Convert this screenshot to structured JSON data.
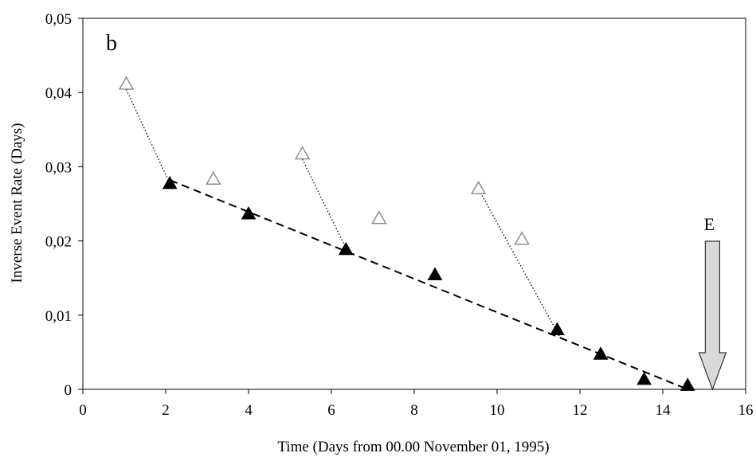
{
  "chart_data": {
    "type": "scatter",
    "panel_label": "b",
    "xlabel": "Time  (Days from 00.00 November 01, 1995)",
    "ylabel": "Inverse Event Rate  (Days)",
    "xlim": [
      0,
      16
    ],
    "ylim": [
      0,
      0.05
    ],
    "x_ticks": [
      0,
      2,
      4,
      6,
      8,
      10,
      12,
      14,
      16
    ],
    "x_tick_labels": [
      "0",
      "2",
      "4",
      "6",
      "8",
      "10",
      "12",
      "14",
      "16"
    ],
    "y_ticks": [
      0,
      0.01,
      0.02,
      0.03,
      0.04,
      0.05
    ],
    "y_tick_labels": [
      "0",
      "0,01",
      "0,02",
      "0,03",
      "0,04",
      "0,05"
    ],
    "grid": false,
    "series": [
      {
        "marker": "filled-triangle",
        "color": "#000000",
        "x": [
          2.1,
          4.0,
          6.35,
          8.5,
          11.45,
          12.5,
          13.55,
          14.6
        ],
        "y": [
          0.0277,
          0.0236,
          0.0188,
          0.0154,
          0.008,
          0.0047,
          0.0013,
          0.0005
        ]
      },
      {
        "marker": "open-triangle",
        "color": "#888888",
        "x": [
          1.05,
          3.15,
          5.3,
          7.15,
          9.55,
          10.6
        ],
        "y": [
          0.0411,
          0.0283,
          0.0317,
          0.023,
          0.027,
          0.0202
        ]
      }
    ],
    "dashed_trend": {
      "x": [
        2.1,
        14.6
      ],
      "y": [
        0.0282,
        0.0
      ]
    },
    "dotted_segments": [
      {
        "x": [
          1.05,
          2.05
        ],
        "y": [
          0.0404,
          0.0283
        ]
      },
      {
        "x": [
          5.3,
          6.3
        ],
        "y": [
          0.031,
          0.0196
        ]
      },
      {
        "x": [
          9.6,
          11.5
        ],
        "y": [
          0.0265,
          0.0072
        ]
      }
    ],
    "annotation": {
      "label": "E",
      "x": 15.2,
      "arrow": "down",
      "fill": "#d9d9d9"
    }
  }
}
